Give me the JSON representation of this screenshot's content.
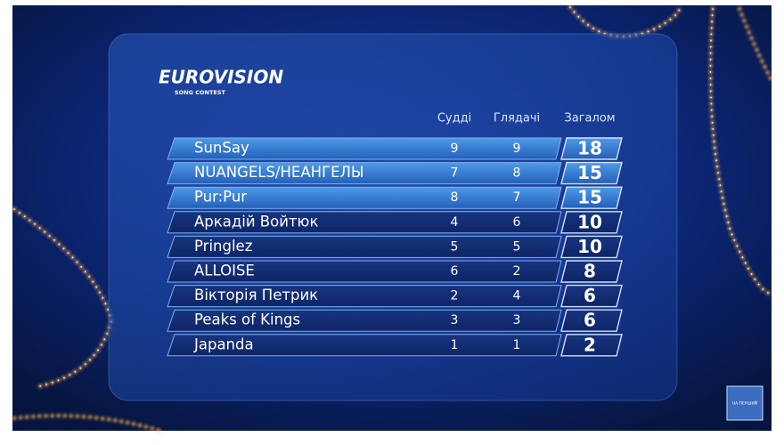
{
  "logo": {
    "title": "EUROVISION",
    "subtitle": "SONG CONTEST"
  },
  "table": {
    "headers": [
      "Судді",
      "Глядачі",
      "Загалом"
    ],
    "rows": [
      [
        "SunSay",
        9,
        9,
        18
      ],
      [
        "NUANGELS/НЕАНГЕЛЫ",
        7,
        8,
        15
      ],
      [
        "Pur:Pur",
        8,
        7,
        15
      ],
      [
        "Аркадій Войтюк",
        4,
        6,
        10
      ],
      [
        "Pringlez",
        5,
        5,
        10
      ],
      [
        "ALLOISE",
        6,
        2,
        8
      ],
      [
        "Вікторія Петрик",
        2,
        4,
        6
      ],
      [
        "Peaks of Kings",
        3,
        3,
        6
      ],
      [
        "Japanda",
        1,
        1,
        2
      ]
    ]
  },
  "channel": "UA:ПЕРШИЙ"
}
